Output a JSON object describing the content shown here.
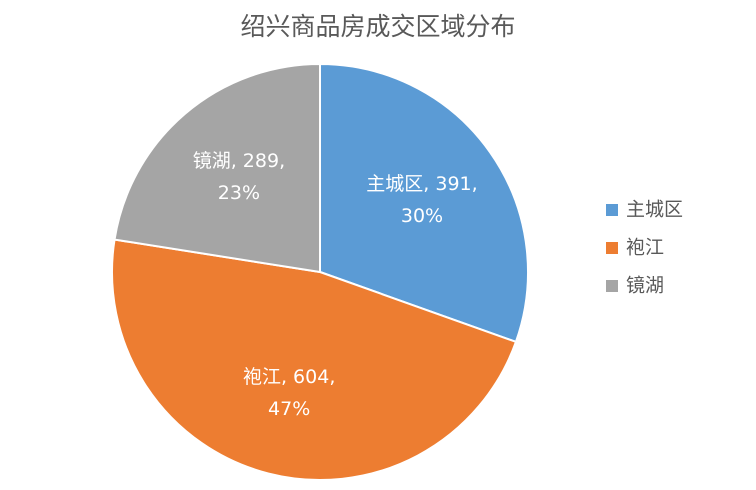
{
  "chart_data": {
    "type": "pie",
    "title": "绍兴商品房成交区域分布",
    "categories": [
      "主城区",
      "袍江",
      "镜湖"
    ],
    "values": [
      391,
      604,
      289
    ],
    "value_labels": [
      "主城区, 391, 30%",
      "袍江, 604, 47%",
      "镜湖, 289, 23%"
    ],
    "colors": [
      "#5b9bd5",
      "#ed7d31",
      "#a5a5a5"
    ],
    "legend": "right"
  }
}
